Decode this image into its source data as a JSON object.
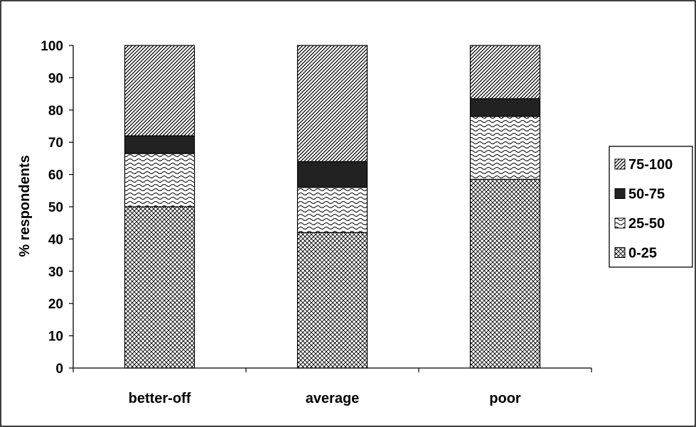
{
  "chart_data": {
    "type": "bar",
    "stacked": true,
    "categories": [
      "better-off",
      "average",
      "poor"
    ],
    "series": [
      {
        "name": "0-25",
        "values": [
          50,
          42,
          58.5
        ],
        "pattern": "crosshatch"
      },
      {
        "name": "25-50",
        "values": [
          16.5,
          14,
          19.5
        ],
        "pattern": "wave"
      },
      {
        "name": "50-75",
        "values": [
          5.5,
          8,
          5.5
        ],
        "pattern": "solid"
      },
      {
        "name": "75-100",
        "values": [
          28,
          36,
          16.5
        ],
        "pattern": "diagonal"
      }
    ],
    "title": "",
    "xlabel": "",
    "ylabel": "% respondents",
    "ylim": [
      0,
      100
    ],
    "yticks": [
      "0",
      "10",
      "20",
      "30",
      "40",
      "50",
      "60",
      "70",
      "80",
      "90",
      "100"
    ],
    "grid": false,
    "legend_position": "right",
    "legend_order": [
      "75-100",
      "50-75",
      "25-50",
      "0-25"
    ],
    "colors": {
      "bar_outline": "#000000",
      "solid_fill": "#222222",
      "background": "#ffffff"
    }
  }
}
